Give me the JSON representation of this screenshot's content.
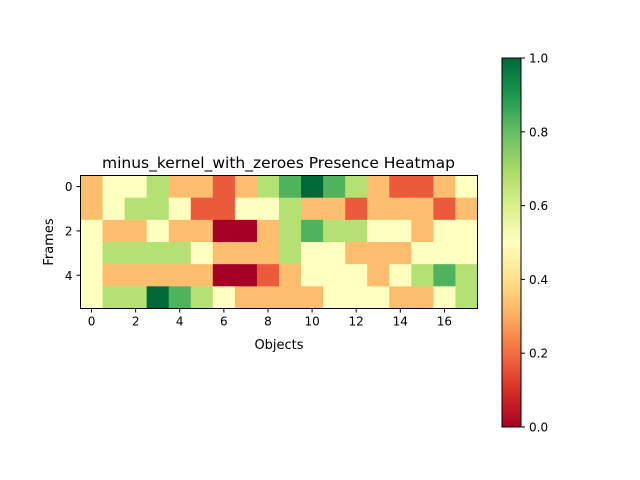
{
  "chart_data": {
    "type": "heatmap",
    "title": "minus_kernel_with_zeroes Presence Heatmap",
    "xlabel": "Objects",
    "ylabel": "Frames",
    "colormap": "RdYlGn",
    "vmin": 0.0,
    "vmax": 1.0,
    "colorbar_ticks": [
      "0.0",
      "0.2",
      "0.4",
      "0.6",
      "0.8",
      "1.0"
    ],
    "x_ticks": [
      "0",
      "2",
      "4",
      "6",
      "8",
      "10",
      "12",
      "14",
      "16"
    ],
    "y_ticks": [
      "0",
      "2",
      "4"
    ],
    "n_cols": 18,
    "n_rows": 6,
    "values": [
      [
        0.33,
        0.5,
        0.5,
        0.67,
        0.33,
        0.33,
        0.17,
        0.33,
        0.67,
        0.83,
        1.0,
        0.83,
        0.67,
        0.33,
        0.17,
        0.17,
        0.33,
        0.5
      ],
      [
        0.33,
        0.5,
        0.67,
        0.67,
        0.5,
        0.17,
        0.17,
        0.5,
        0.5,
        0.67,
        0.33,
        0.33,
        0.17,
        0.33,
        0.33,
        0.33,
        0.17,
        0.33
      ],
      [
        0.5,
        0.33,
        0.33,
        0.5,
        0.33,
        0.33,
        0.0,
        0.0,
        0.33,
        0.67,
        0.83,
        0.67,
        0.67,
        0.5,
        0.5,
        0.33,
        0.5,
        0.5
      ],
      [
        0.5,
        0.67,
        0.67,
        0.67,
        0.67,
        0.5,
        0.33,
        0.33,
        0.33,
        0.67,
        0.5,
        0.5,
        0.33,
        0.33,
        0.33,
        0.5,
        0.5,
        0.5
      ],
      [
        0.5,
        0.33,
        0.33,
        0.33,
        0.33,
        0.33,
        0.0,
        0.0,
        0.17,
        0.33,
        0.5,
        0.5,
        0.5,
        0.33,
        0.5,
        0.67,
        0.83,
        0.67
      ],
      [
        0.5,
        0.67,
        0.67,
        1.0,
        0.83,
        0.67,
        0.5,
        0.33,
        0.33,
        0.33,
        0.33,
        0.5,
        0.5,
        0.5,
        0.33,
        0.33,
        0.5,
        0.67
      ]
    ]
  }
}
